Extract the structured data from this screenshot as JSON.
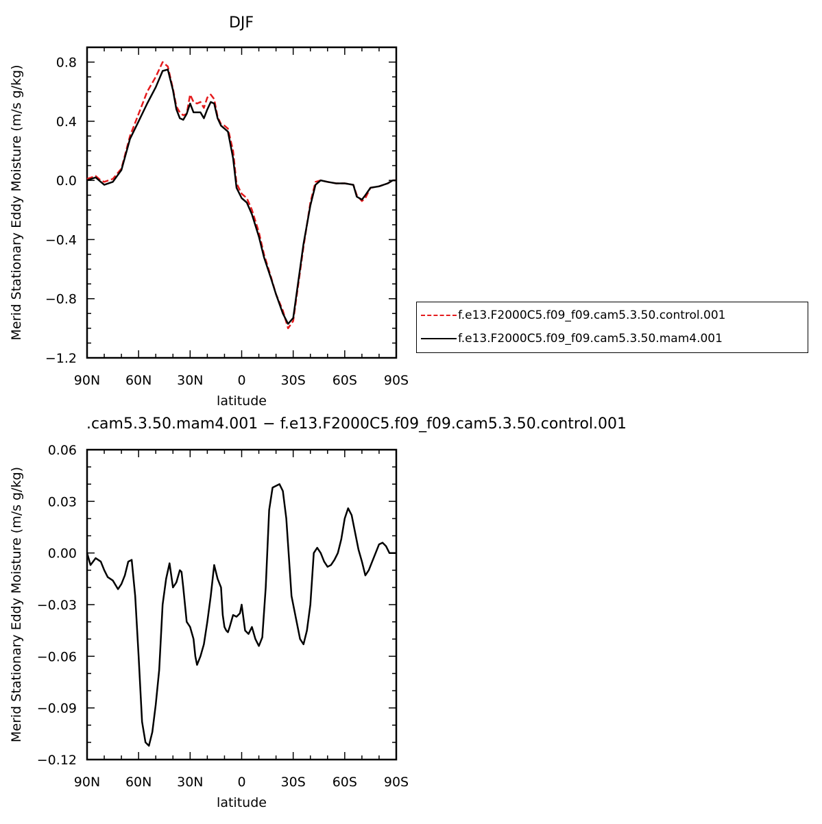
{
  "chart_data": [
    {
      "type": "line",
      "title": "DJF",
      "xlabel": "latitude",
      "ylabel": "Merid Stationary Eddy Moisture (m/s g/kg)",
      "xlim": [
        90,
        -90
      ],
      "ylim": [
        -1.2,
        0.9
      ],
      "x_ticks": [
        "90N",
        "60N",
        "30N",
        "0",
        "30S",
        "60S",
        "90S"
      ],
      "y_ticks": [
        "0.8",
        "0.4",
        "0.0",
        "−0.4",
        "−0.8",
        "−1.2"
      ],
      "legend": "right",
      "series": [
        {
          "name": "f.e13.F2000C5.f09_f09.cam5.3.50.control.001",
          "color": "#e41a1c",
          "dash": "dashed",
          "x": [
            90,
            85,
            82,
            80,
            75,
            70,
            65,
            60,
            55,
            50,
            46,
            43,
            40,
            38,
            36,
            34,
            32,
            30,
            28,
            26,
            24,
            22,
            20,
            18,
            16,
            14,
            12,
            10,
            8,
            5,
            3,
            0,
            -3,
            -6,
            -10,
            -13,
            -17,
            -20,
            -24,
            -27,
            -30,
            -33,
            -36,
            -40,
            -43,
            -46,
            -50,
            -55,
            -60,
            -65,
            -67,
            -70,
            -72,
            -75,
            -80,
            -85,
            -88,
            -90
          ],
          "y": [
            0.01,
            0.03,
            0.0,
            -0.01,
            0.01,
            0.08,
            0.3,
            0.45,
            0.6,
            0.7,
            0.8,
            0.77,
            0.62,
            0.5,
            0.46,
            0.44,
            0.45,
            0.58,
            0.53,
            0.52,
            0.53,
            0.49,
            0.56,
            0.58,
            0.55,
            0.43,
            0.38,
            0.37,
            0.35,
            0.2,
            -0.02,
            -0.09,
            -0.12,
            -0.2,
            -0.35,
            -0.5,
            -0.65,
            -0.77,
            -0.88,
            -1.0,
            -0.95,
            -0.7,
            -0.45,
            -0.15,
            -0.01,
            0.0,
            -0.01,
            -0.02,
            -0.02,
            -0.03,
            -0.1,
            -0.14,
            -0.12,
            -0.05,
            -0.04,
            -0.02,
            0.0,
            0.0
          ]
        },
        {
          "name": "f.e13.F2000C5.f09_f09.cam5.3.50.mam4.001",
          "color": "#000000",
          "dash": "solid",
          "x": [
            90,
            85,
            82,
            80,
            75,
            70,
            65,
            60,
            55,
            50,
            46,
            43,
            40,
            38,
            36,
            34,
            32,
            30,
            28,
            26,
            24,
            22,
            20,
            18,
            16,
            14,
            12,
            10,
            8,
            5,
            3,
            0,
            -3,
            -6,
            -10,
            -13,
            -17,
            -20,
            -24,
            -27,
            -30,
            -33,
            -36,
            -40,
            -43,
            -46,
            -50,
            -55,
            -60,
            -65,
            -67,
            -70,
            -72,
            -75,
            -80,
            -85,
            -88,
            -90
          ],
          "y": [
            0.0,
            0.02,
            -0.01,
            -0.03,
            -0.01,
            0.07,
            0.28,
            0.4,
            0.52,
            0.63,
            0.74,
            0.75,
            0.61,
            0.48,
            0.42,
            0.41,
            0.45,
            0.52,
            0.46,
            0.46,
            0.46,
            0.42,
            0.48,
            0.53,
            0.52,
            0.42,
            0.37,
            0.35,
            0.33,
            0.15,
            -0.05,
            -0.12,
            -0.15,
            -0.23,
            -0.38,
            -0.52,
            -0.66,
            -0.77,
            -0.9,
            -0.97,
            -0.93,
            -0.68,
            -0.43,
            -0.17,
            -0.03,
            0.0,
            -0.01,
            -0.02,
            -0.02,
            -0.03,
            -0.11,
            -0.13,
            -0.1,
            -0.05,
            -0.04,
            -0.02,
            0.0,
            0.0
          ]
        }
      ]
    },
    {
      "type": "line",
      "title": ".cam5.3.50.mam4.001 − f.e13.F2000C5.f09_f09.cam5.3.50.control.001",
      "xlabel": "latitude",
      "ylabel": "Merid Stationary Eddy Moisture (m/s g/kg)",
      "xlim": [
        90,
        -90
      ],
      "ylim": [
        -0.12,
        0.06
      ],
      "x_ticks": [
        "90N",
        "60N",
        "30N",
        "0",
        "30S",
        "60S",
        "90S"
      ],
      "y_ticks": [
        "0.06",
        "0.03",
        "0.00",
        "−0.03",
        "−0.06",
        "−0.09",
        "−0.12"
      ],
      "series": [
        {
          "color": "#000000",
          "dash": "solid",
          "x": [
            90,
            88,
            85,
            82,
            80,
            78,
            75,
            72,
            70,
            68,
            66,
            64,
            62,
            60,
            58,
            56,
            54,
            52,
            50,
            48,
            46,
            44,
            42,
            40,
            38,
            36,
            35,
            34,
            32,
            30,
            28,
            27,
            26,
            24,
            22,
            20,
            18,
            16,
            14,
            12,
            11,
            10,
            9,
            8,
            7,
            5,
            3,
            1,
            0,
            -2,
            -4,
            -6,
            -8,
            -10,
            -12,
            -14,
            -16,
            -18,
            -20,
            -22,
            -24,
            -26,
            -28,
            -29,
            -30,
            -32,
            -34,
            -36,
            -38,
            -40,
            -41,
            -42,
            -44,
            -46,
            -48,
            -50,
            -52,
            -54,
            -56,
            -58,
            -60,
            -62,
            -64,
            -66,
            -68,
            -70,
            -72,
            -74,
            -76,
            -78,
            -80,
            -82,
            -84,
            -86,
            -88,
            -90
          ],
          "y": [
            0.0,
            -0.007,
            -0.003,
            -0.005,
            -0.01,
            -0.014,
            -0.016,
            -0.021,
            -0.018,
            -0.013,
            -0.005,
            -0.004,
            -0.025,
            -0.06,
            -0.098,
            -0.11,
            -0.112,
            -0.104,
            -0.088,
            -0.068,
            -0.03,
            -0.015,
            -0.006,
            -0.02,
            -0.017,
            -0.01,
            -0.011,
            -0.02,
            -0.04,
            -0.043,
            -0.05,
            -0.06,
            -0.065,
            -0.06,
            -0.053,
            -0.04,
            -0.025,
            -0.007,
            -0.015,
            -0.02,
            -0.036,
            -0.043,
            -0.045,
            -0.046,
            -0.043,
            -0.036,
            -0.037,
            -0.035,
            -0.03,
            -0.045,
            -0.047,
            -0.043,
            -0.05,
            -0.054,
            -0.049,
            -0.02,
            0.025,
            0.038,
            0.039,
            0.04,
            0.036,
            0.02,
            -0.01,
            -0.025,
            -0.03,
            -0.04,
            -0.05,
            -0.053,
            -0.045,
            -0.03,
            -0.015,
            0.0,
            0.003,
            0.0,
            -0.005,
            -0.008,
            -0.007,
            -0.004,
            0.0,
            0.008,
            0.02,
            0.026,
            0.022,
            0.012,
            0.002,
            -0.005,
            -0.013,
            -0.01,
            -0.005,
            0.0,
            0.005,
            0.006,
            0.004,
            0.0,
            0.0,
            0.0
          ]
        }
      ]
    }
  ]
}
